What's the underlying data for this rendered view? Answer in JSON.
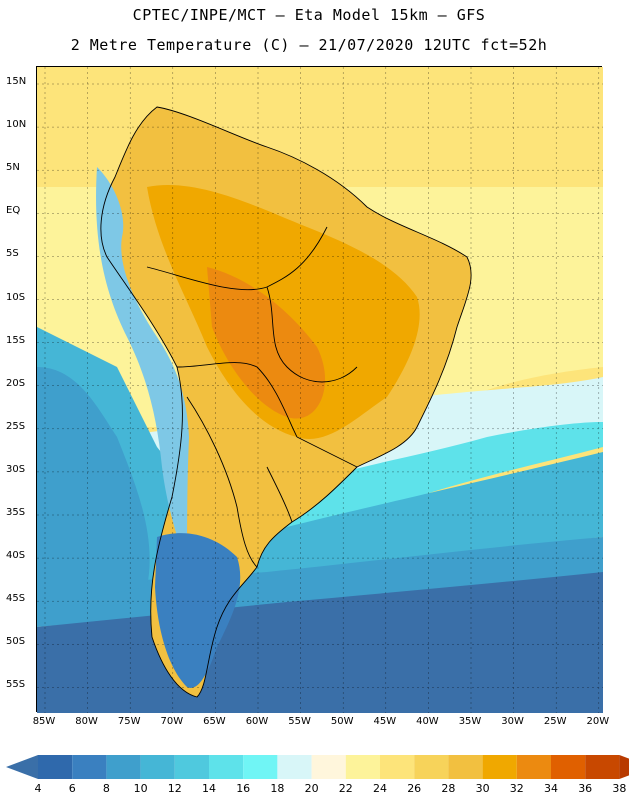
{
  "header": {
    "line1": "CPTEC/INPE/MCT –  Eta Model 15km – GFS",
    "line2": "2 Metre Temperature (C) – 21/07/2020 12UTC fct=52h"
  },
  "latitude_labels": [
    "15N",
    "10N",
    "5N",
    "EQ",
    "5S",
    "10S",
    "15S",
    "20S",
    "25S",
    "30S",
    "35S",
    "40S",
    "45S",
    "50S",
    "55S"
  ],
  "longitude_labels": [
    "85W",
    "80W",
    "75W",
    "70W",
    "65W",
    "60W",
    "55W",
    "50W",
    "45W",
    "40W",
    "35W",
    "30W",
    "25W",
    "20W"
  ],
  "colorbar": {
    "labels": [
      "4",
      "6",
      "8",
      "10",
      "12",
      "14",
      "16",
      "18",
      "20",
      "22",
      "24",
      "26",
      "28",
      "30",
      "32",
      "34",
      "36",
      "38"
    ],
    "colors": [
      "#3a6fa8",
      "#2f69ac",
      "#3a80c0",
      "#3f9fcc",
      "#45b6d6",
      "#4fc9de",
      "#5ee2ea",
      "#70f5f5",
      "#d8f6f8",
      "#fff6dc",
      "#fdf39a",
      "#fde47a",
      "#f7d35a",
      "#f2c040",
      "#f0a800",
      "#ec8a10",
      "#e06000",
      "#c84800",
      "#b83a00"
    ]
  },
  "map": {
    "ocean_bands": [
      {
        "name": "tropical-atlantic",
        "color": "#fde47a"
      },
      {
        "name": "subtropical",
        "color": "#fdf39a"
      },
      {
        "name": "transition",
        "color": "#d8f6f8"
      },
      {
        "name": "cool",
        "color": "#5ee2ea"
      },
      {
        "name": "cold",
        "color": "#45b6d6"
      },
      {
        "name": "colder",
        "color": "#3f9fcc"
      },
      {
        "name": "coldest",
        "color": "#3a6fa8"
      }
    ],
    "land_colors": {
      "amazon": "#f2c040",
      "central": "#f0a800",
      "hot-core": "#ec8a10",
      "andes": "#7ec8e6",
      "patagonia": "#3a80c0"
    }
  }
}
